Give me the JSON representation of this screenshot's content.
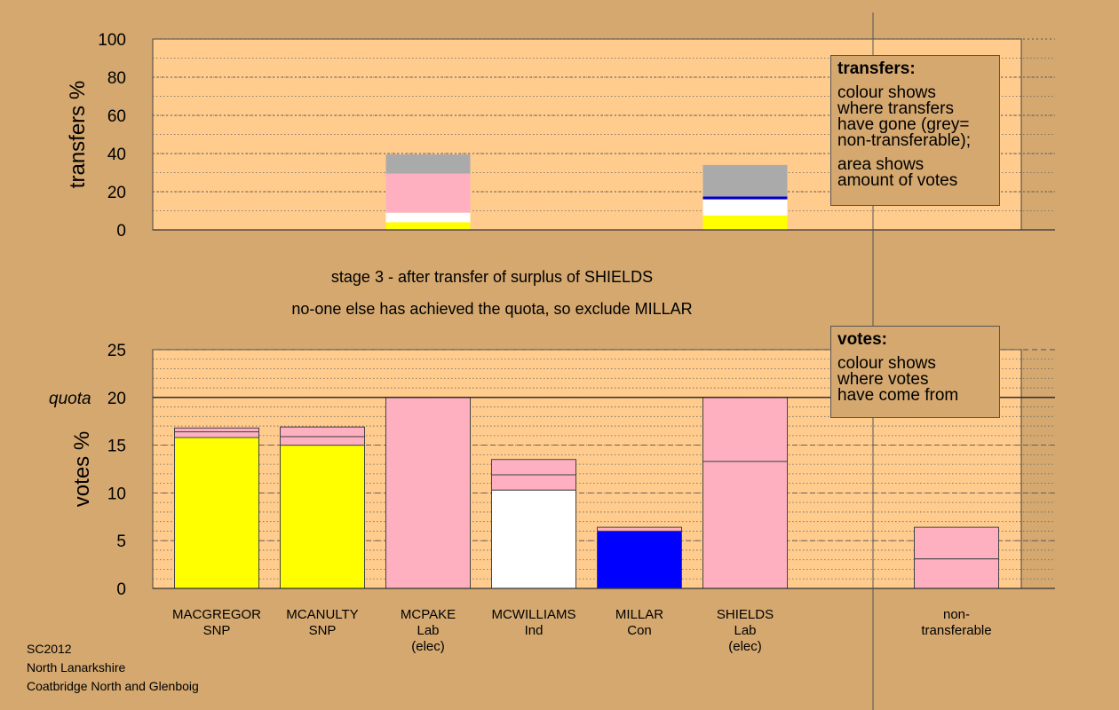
{
  "chart_data": [
    {
      "type": "bar",
      "stacked": true,
      "ylabel": "transfers %",
      "ylim": [
        0,
        100
      ],
      "y_ticks": [
        "0",
        "20",
        "40",
        "60",
        "80",
        "100"
      ],
      "bars": [
        {
          "slot": 3,
          "segments": [
            {
              "color": "#ffff00",
              "value": 4
            },
            {
              "color": "#ffffff",
              "value": 5
            },
            {
              "color": "#ffb0c0",
              "value": 20.5
            },
            {
              "color": "#aaaaaa",
              "value": 10
            }
          ]
        },
        {
          "slot": 6,
          "segments": [
            {
              "color": "#ffff00",
              "value": 7.5
            },
            {
              "color": "#ffffff",
              "value": 8.5
            },
            {
              "color": "#0000cc",
              "value": 1.5
            },
            {
              "color": "#aaaaaa",
              "value": 16.5
            }
          ]
        }
      ],
      "legend": {
        "title": "transfers:",
        "lines1": [
          "colour shows",
          "where transfers",
          "have gone (grey=",
          "non-transferable);"
        ],
        "lines2": [
          "area shows",
          "amount of votes"
        ]
      }
    },
    {
      "type": "bar",
      "stacked": true,
      "ylabel": "votes %",
      "ylim": [
        0,
        25
      ],
      "y_ticks": [
        "0",
        "5",
        "10",
        "15",
        "20",
        "25"
      ],
      "quota": {
        "value": 20,
        "label": "quota"
      },
      "categories": [
        {
          "lines": [
            "MACGREGOR",
            "SNP"
          ]
        },
        {
          "lines": [
            "MCANULTY",
            "SNP"
          ]
        },
        {
          "lines": [
            "MCPAKE",
            "Lab",
            "(elec)"
          ]
        },
        {
          "lines": [
            "MCWILLIAMS",
            "Ind"
          ]
        },
        {
          "lines": [
            "MILLAR",
            "Con"
          ]
        },
        {
          "lines": [
            "SHIELDS",
            "Lab",
            "(elec)"
          ]
        },
        {
          "lines": [
            "non-",
            "transferable"
          ]
        }
      ],
      "bars": [
        {
          "slot": 1,
          "segments": [
            {
              "color": "#ffff00",
              "value": 15.8
            },
            {
              "color": "#ffb0c0",
              "value": 0.6
            },
            {
              "color": "#ffb0c0",
              "value": 0.4
            }
          ]
        },
        {
          "slot": 2,
          "segments": [
            {
              "color": "#ffff00",
              "value": 15.0
            },
            {
              "color": "#ffb0c0",
              "value": 0.9
            },
            {
              "color": "#ffb0c0",
              "value": 1.0
            }
          ]
        },
        {
          "slot": 3,
          "segments": [
            {
              "color": "#ffb0c0",
              "value": 20.0
            }
          ]
        },
        {
          "slot": 4,
          "segments": [
            {
              "color": "#ffffff",
              "value": 10.3
            },
            {
              "color": "#ffb0c0",
              "value": 1.6
            },
            {
              "color": "#ffb0c0",
              "value": 1.6
            }
          ]
        },
        {
          "slot": 5,
          "segments": [
            {
              "color": "#0000ff",
              "value": 6.0
            },
            {
              "color": "#ffb0c0",
              "value": 0.4
            }
          ]
        },
        {
          "slot": 6,
          "segments": [
            {
              "color": "#ffb0c0",
              "value": 13.3
            },
            {
              "color": "#ffb0c0",
              "value": 6.7
            }
          ]
        },
        {
          "slot": 8,
          "segments": [
            {
              "color": "#ffb0c0",
              "value": 3.1
            },
            {
              "color": "#ffb0c0",
              "value": 3.3
            }
          ]
        }
      ],
      "legend": {
        "title": "votes:",
        "lines": [
          "colour shows",
          "where votes",
          "have come from"
        ]
      }
    }
  ],
  "captions": {
    "line1": "stage 3 - after transfer of surplus of SHIELDS",
    "line2": "no-one else has achieved the quota, so exclude MILLAR"
  },
  "footer": {
    "line1": "SC2012",
    "line2": "North Lanarkshire",
    "line3": "Coatbridge North and Glenboig"
  },
  "colors": {
    "background": "#d4a86f",
    "plot_area": "#ffcc8e"
  }
}
